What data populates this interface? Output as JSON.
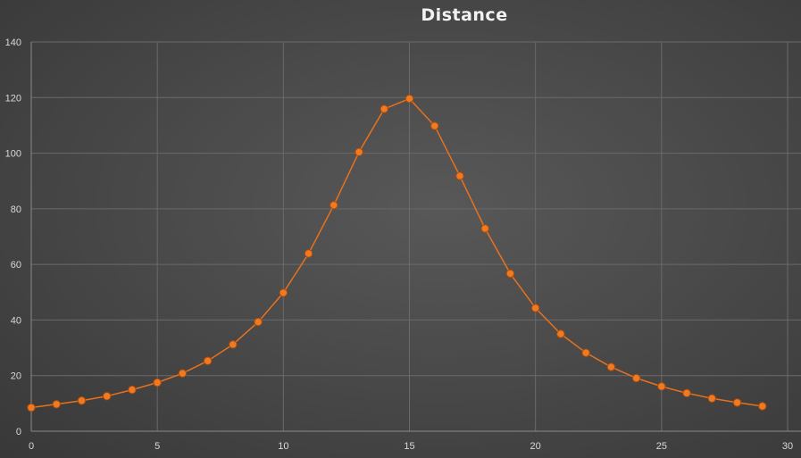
{
  "chart_data": {
    "type": "scatter",
    "title": "Distance",
    "xlabel": "",
    "ylabel": "",
    "xlim": [
      0,
      30
    ],
    "ylim": [
      0,
      140
    ],
    "xticks": [
      0,
      5,
      10,
      15,
      20,
      25,
      30
    ],
    "yticks": [
      0,
      20,
      40,
      60,
      80,
      100,
      120,
      140
    ],
    "grid": true,
    "legend": "none",
    "series": [
      {
        "color": "#e8711c",
        "marker_fill": "#f07a21",
        "x": [
          0,
          1,
          2,
          3,
          4,
          5,
          6,
          7,
          8,
          9,
          10,
          11,
          12,
          13,
          14,
          15,
          16,
          17,
          18,
          19,
          20,
          21,
          22,
          23,
          24,
          25,
          26,
          27,
          28,
          29
        ],
        "y": [
          8.5,
          9.7,
          11,
          12.6,
          14.9,
          17.5,
          20.8,
          25.3,
          31.2,
          39.3,
          49.8,
          63.9,
          81.3,
          100.4,
          115.9,
          119.6,
          109.8,
          91.8,
          72.9,
          56.7,
          44.3,
          35,
          28.2,
          23.1,
          19.1,
          16.1,
          13.7,
          11.8,
          10.3,
          9
        ]
      }
    ]
  }
}
